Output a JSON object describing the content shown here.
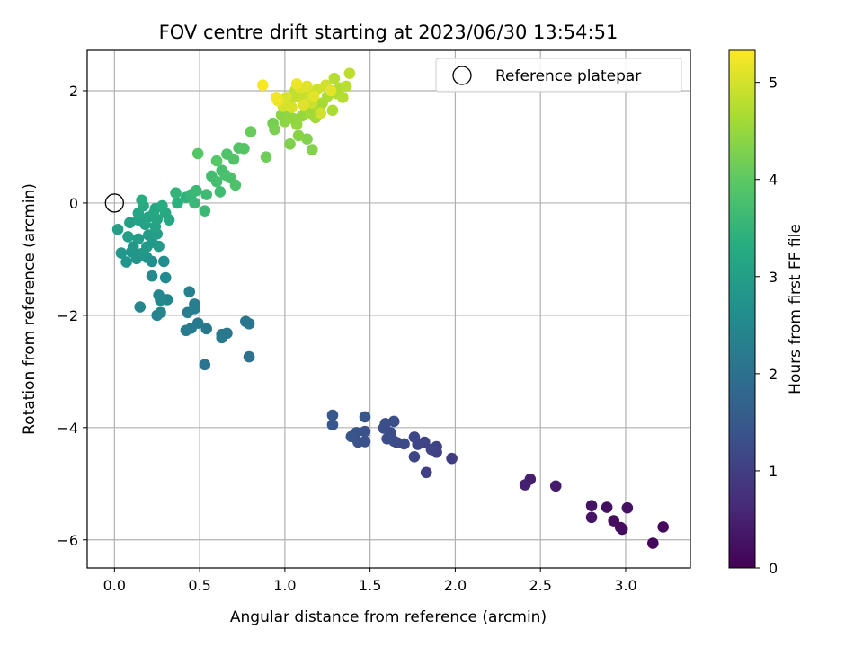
{
  "chart_data": {
    "type": "scatter",
    "title": "FOV centre drift starting at 2023/06/30 13:54:51",
    "xlabel": "Angular distance from reference (arcmin)",
    "ylabel": "Rotation from reference (arcmin)",
    "xlim": [
      -0.16,
      3.38
    ],
    "ylim": [
      -6.5,
      2.72
    ],
    "xticks": [
      0.0,
      0.5,
      1.0,
      1.5,
      2.0,
      2.5,
      3.0
    ],
    "xtick_labels": [
      "0.0",
      "0.5",
      "1.0",
      "1.5",
      "2.0",
      "2.5",
      "3.0"
    ],
    "yticks": [
      -6,
      -4,
      -2,
      0,
      2
    ],
    "ytick_labels": [
      "−6",
      "−4",
      "−2",
      "0",
      "2"
    ],
    "grid": true,
    "legend": {
      "placement": "top-right",
      "entries": [
        "Reference platepar"
      ]
    },
    "reference_point": {
      "x": 0.0,
      "y": 0.0,
      "label": "Reference platepar"
    },
    "colorbar": {
      "label": "Hours from first FF file",
      "range": [
        0,
        5.33
      ],
      "ticks": [
        0,
        1,
        2,
        3,
        4,
        5
      ],
      "colormap": "viridis"
    },
    "series": [
      {
        "points": [
          [
            3.16,
            -6.06,
            0.1
          ],
          [
            3.22,
            -5.77,
            0.12
          ],
          [
            2.98,
            -5.81,
            0.15
          ],
          [
            2.97,
            -5.78,
            0.18
          ],
          [
            2.93,
            -5.66,
            0.2
          ],
          [
            2.89,
            -5.42,
            0.22
          ],
          [
            3.01,
            -5.43,
            0.25
          ],
          [
            2.8,
            -5.39,
            0.28
          ],
          [
            2.8,
            -5.6,
            0.3
          ],
          [
            2.59,
            -5.04,
            0.4
          ],
          [
            2.44,
            -4.92,
            0.45
          ],
          [
            2.41,
            -5.02,
            0.5
          ],
          [
            1.98,
            -4.55,
            0.95
          ],
          [
            1.83,
            -4.8,
            1.0
          ],
          [
            1.89,
            -4.44,
            1.02
          ],
          [
            1.89,
            -4.34,
            1.05
          ],
          [
            1.86,
            -4.39,
            1.08
          ],
          [
            1.82,
            -4.26,
            1.1
          ],
          [
            1.78,
            -4.3,
            1.12
          ],
          [
            1.76,
            -4.52,
            1.14
          ],
          [
            1.76,
            -4.17,
            1.16
          ],
          [
            1.7,
            -4.29,
            1.18
          ],
          [
            1.66,
            -4.27,
            1.2
          ],
          [
            1.64,
            -4.24,
            1.22
          ],
          [
            1.62,
            -4.09,
            1.24
          ],
          [
            1.6,
            -4.2,
            1.26
          ],
          [
            1.59,
            -3.93,
            1.28
          ],
          [
            1.64,
            -3.89,
            1.3
          ],
          [
            1.58,
            -4.01,
            1.32
          ],
          [
            1.47,
            -4.25,
            1.34
          ],
          [
            1.47,
            -4.07,
            1.36
          ],
          [
            1.43,
            -4.26,
            1.38
          ],
          [
            1.42,
            -4.09,
            1.4
          ],
          [
            1.39,
            -4.16,
            1.42
          ],
          [
            1.47,
            -3.81,
            1.44
          ],
          [
            1.28,
            -3.95,
            1.46
          ],
          [
            1.28,
            -3.78,
            1.48
          ],
          [
            0.79,
            -2.74,
            2.0
          ],
          [
            0.53,
            -2.88,
            2.05
          ],
          [
            0.79,
            -2.15,
            2.08
          ],
          [
            0.77,
            -2.11,
            2.1
          ],
          [
            0.66,
            -2.32,
            2.12
          ],
          [
            0.63,
            -2.34,
            2.14
          ],
          [
            0.63,
            -2.4,
            2.16
          ],
          [
            0.54,
            -2.24,
            2.18
          ],
          [
            0.49,
            -2.14,
            2.2
          ],
          [
            0.45,
            -2.23,
            2.22
          ],
          [
            0.42,
            -2.27,
            2.24
          ],
          [
            0.43,
            -1.95,
            2.26
          ],
          [
            0.47,
            -1.88,
            2.28
          ],
          [
            0.47,
            -1.8,
            2.3
          ],
          [
            0.44,
            -1.58,
            2.32
          ],
          [
            0.25,
            -2.0,
            2.4
          ],
          [
            0.27,
            -1.95,
            2.42
          ],
          [
            0.15,
            -1.85,
            2.44
          ],
          [
            0.31,
            -1.72,
            2.46
          ],
          [
            0.26,
            -1.64,
            2.48
          ],
          [
            0.27,
            -1.73,
            2.5
          ],
          [
            0.3,
            -1.33,
            2.55
          ],
          [
            0.22,
            -1.3,
            2.58
          ],
          [
            0.29,
            -1.04,
            2.62
          ],
          [
            0.22,
            -1.04,
            2.65
          ],
          [
            0.19,
            -0.97,
            2.7
          ],
          [
            0.13,
            -0.99,
            2.75
          ],
          [
            0.1,
            -0.87,
            2.78
          ],
          [
            0.07,
            -1.05,
            2.8
          ],
          [
            0.04,
            -0.89,
            2.82
          ],
          [
            0.16,
            -0.9,
            2.84
          ],
          [
            0.11,
            -0.78,
            2.86
          ],
          [
            0.19,
            -0.78,
            2.88
          ],
          [
            0.22,
            -0.7,
            2.9
          ],
          [
            0.26,
            -0.77,
            2.92
          ],
          [
            0.14,
            -0.64,
            2.94
          ],
          [
            0.2,
            -0.57,
            2.96
          ],
          [
            0.25,
            -0.55,
            2.98
          ],
          [
            0.08,
            -0.6,
            3.0
          ],
          [
            0.02,
            -0.47,
            3.02
          ],
          [
            0.09,
            -0.35,
            3.04
          ],
          [
            0.14,
            -0.3,
            3.06
          ],
          [
            0.18,
            -0.38,
            3.08
          ],
          [
            0.24,
            -0.42,
            3.1
          ],
          [
            0.2,
            -0.25,
            3.12
          ],
          [
            0.25,
            -0.29,
            3.14
          ],
          [
            0.14,
            -0.18,
            3.16
          ],
          [
            0.23,
            -0.19,
            3.18
          ],
          [
            0.24,
            -0.1,
            3.2
          ],
          [
            0.3,
            -0.18,
            3.22
          ],
          [
            0.32,
            -0.3,
            3.24
          ],
          [
            0.17,
            -0.05,
            3.26
          ],
          [
            0.28,
            -0.05,
            3.28
          ],
          [
            0.16,
            0.05,
            3.32
          ],
          [
            0.37,
            0.0,
            3.4
          ],
          [
            0.42,
            0.1,
            3.45
          ],
          [
            0.36,
            0.18,
            3.5
          ],
          [
            0.45,
            0.15,
            3.55
          ],
          [
            0.47,
            0.0,
            3.58
          ],
          [
            0.48,
            0.22,
            3.6
          ],
          [
            0.53,
            -0.14,
            3.62
          ],
          [
            0.54,
            0.15,
            3.64
          ],
          [
            0.62,
            0.2,
            3.66
          ],
          [
            0.57,
            0.48,
            3.7
          ],
          [
            0.6,
            0.38,
            3.72
          ],
          [
            0.63,
            0.58,
            3.75
          ],
          [
            0.65,
            0.5,
            3.78
          ],
          [
            0.68,
            0.45,
            3.8
          ],
          [
            0.71,
            0.32,
            3.82
          ],
          [
            0.66,
            0.87,
            3.84
          ],
          [
            0.7,
            0.78,
            3.86
          ],
          [
            0.73,
            0.98,
            3.88
          ],
          [
            0.76,
            0.97,
            3.9
          ],
          [
            0.49,
            0.88,
            3.92
          ],
          [
            0.6,
            0.75,
            3.94
          ],
          [
            0.8,
            1.27,
            4.1
          ],
          [
            0.89,
            0.82,
            4.15
          ],
          [
            0.93,
            1.42,
            4.2
          ],
          [
            0.94,
            1.31,
            4.25
          ],
          [
            1.03,
            1.05,
            4.3
          ],
          [
            1.13,
            1.14,
            4.32
          ],
          [
            1.16,
            0.95,
            4.34
          ],
          [
            1.08,
            1.2,
            4.36
          ],
          [
            0.98,
            1.57,
            4.4
          ],
          [
            1.0,
            1.45,
            4.42
          ],
          [
            1.02,
            1.62,
            4.44
          ],
          [
            1.05,
            1.5,
            4.46
          ],
          [
            1.07,
            1.4,
            4.48
          ],
          [
            1.1,
            1.55,
            4.5
          ],
          [
            1.12,
            1.7,
            4.55
          ],
          [
            1.15,
            1.6,
            4.58
          ],
          [
            1.18,
            1.52,
            4.6
          ],
          [
            1.2,
            1.68,
            4.62
          ],
          [
            1.22,
            1.78,
            4.64
          ],
          [
            1.25,
            1.9,
            4.66
          ],
          [
            1.28,
            1.65,
            4.68
          ],
          [
            1.3,
            1.95,
            4.7
          ],
          [
            1.32,
            2.05,
            4.72
          ],
          [
            1.34,
            1.88,
            4.74
          ],
          [
            1.29,
            2.22,
            4.76
          ],
          [
            1.36,
            2.08,
            4.78
          ],
          [
            1.38,
            2.31,
            4.8
          ],
          [
            1.03,
            1.82,
            4.82
          ],
          [
            1.06,
            2.0,
            4.84
          ],
          [
            1.08,
            1.9,
            4.86
          ],
          [
            1.1,
            1.85,
            4.88
          ],
          [
            1.14,
            1.95,
            4.9
          ],
          [
            1.16,
            1.78,
            4.92
          ],
          [
            1.19,
            2.02,
            4.94
          ],
          [
            1.24,
            2.1,
            4.96
          ],
          [
            1.21,
            1.6,
            4.98
          ],
          [
            0.99,
            1.72,
            5.0
          ],
          [
            1.01,
            1.88,
            5.02
          ],
          [
            1.04,
            1.7,
            5.04
          ],
          [
            1.09,
            2.05,
            5.06
          ],
          [
            1.11,
            1.75,
            5.08
          ],
          [
            1.13,
            2.08,
            5.1
          ],
          [
            1.17,
            1.9,
            5.12
          ],
          [
            1.27,
            2.0,
            5.14
          ],
          [
            0.96,
            1.82,
            5.18
          ],
          [
            1.07,
            2.12,
            5.2
          ],
          [
            0.95,
            1.88,
            5.24
          ],
          [
            0.87,
            2.1,
            5.3
          ]
        ]
      }
    ]
  }
}
